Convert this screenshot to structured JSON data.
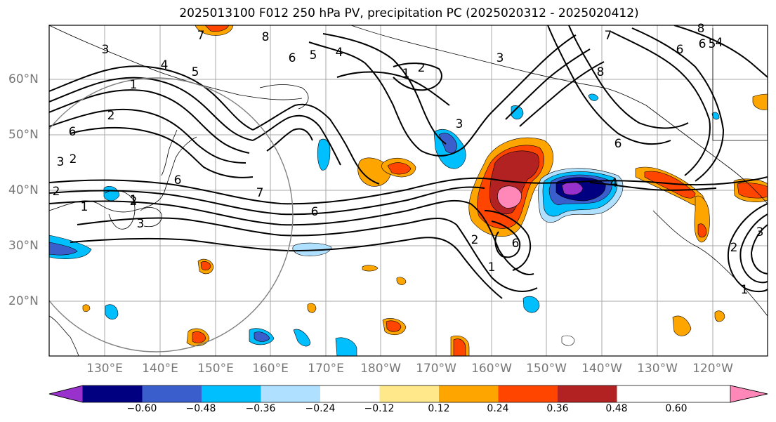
{
  "title": "2025013100 F012 250 hPa PV, precipitation PC (2025020312 - 2025020412)",
  "lat_labels": [
    "60°N",
    "50°N",
    "40°N",
    "30°N",
    "20°N"
  ],
  "lon_labels": [
    "130°E",
    "140°E",
    "150°E",
    "160°E",
    "170°E",
    "180°W",
    "170°W",
    "160°W",
    "150°W",
    "140°W",
    "130°W",
    "120°W"
  ],
  "colorbar": {
    "ticks": [
      "−0.60",
      "−0.48",
      "−0.36",
      "−0.24",
      "−0.12",
      "0.12",
      "0.24",
      "0.36",
      "0.48",
      "0.60"
    ],
    "colors": [
      "#9932CC",
      "#000080",
      "#3A5ECC",
      "#00BFFF",
      "#B0E0FF",
      "#FFFFFF",
      "#FFE88A",
      "#FFA500",
      "#FF4500",
      "#B22222",
      "#FF88B8"
    ]
  },
  "contour_labels": [
    "3",
    "4",
    "5",
    "7",
    "8",
    "6",
    "5",
    "4",
    "1",
    "2",
    "1",
    "3",
    "2",
    "6",
    "1",
    "2",
    "6",
    "8",
    "7",
    "6",
    "8",
    "6",
    "5",
    "4",
    "3",
    "1",
    "2",
    "6",
    "7",
    "6",
    "4",
    "2",
    "6",
    "1",
    "3",
    "3",
    "2",
    "1",
    "2",
    "3"
  ]
}
